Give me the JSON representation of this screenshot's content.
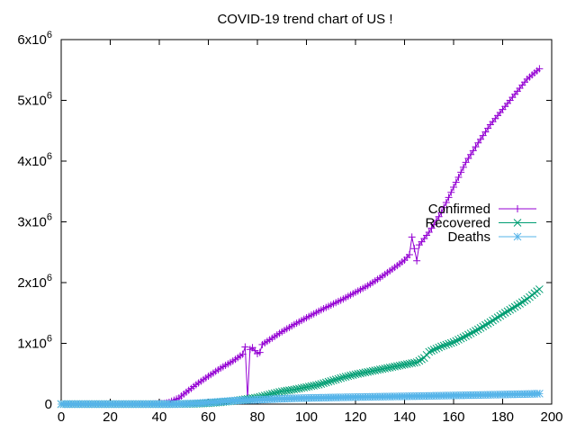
{
  "chart_data": {
    "type": "line",
    "title": "COVID-19 trend chart of US !",
    "xlabel": "",
    "ylabel": "",
    "xlim": [
      0,
      200
    ],
    "ylim": [
      0,
      6000000
    ],
    "x_ticks": [
      0,
      20,
      40,
      60,
      80,
      100,
      120,
      140,
      160,
      180,
      200
    ],
    "y_ticks": [
      {
        "value": 0,
        "mantissa": "0",
        "exponent": ""
      },
      {
        "value": 1000000,
        "mantissa": "1x10",
        "exponent": "6"
      },
      {
        "value": 2000000,
        "mantissa": "2x10",
        "exponent": "6"
      },
      {
        "value": 3000000,
        "mantissa": "3x10",
        "exponent": "6"
      },
      {
        "value": 4000000,
        "mantissa": "4x10",
        "exponent": "6"
      },
      {
        "value": 5000000,
        "mantissa": "5x10",
        "exponent": "6"
      },
      {
        "value": 6000000,
        "mantissa": "6x10",
        "exponent": "6"
      }
    ],
    "grid": false,
    "legend_position": "right",
    "series": [
      {
        "name": "Confirmed",
        "color": "#9400d3",
        "marker": "plus",
        "points": [
          [
            0,
            1
          ],
          [
            10,
            10
          ],
          [
            20,
            15
          ],
          [
            30,
            40
          ],
          [
            35,
            100
          ],
          [
            38,
            1000
          ],
          [
            40,
            3000
          ],
          [
            42,
            10000
          ],
          [
            44,
            30000
          ],
          [
            46,
            65000
          ],
          [
            48,
            100000
          ],
          [
            50,
            165000
          ],
          [
            55,
            320000
          ],
          [
            60,
            460000
          ],
          [
            65,
            590000
          ],
          [
            70,
            710000
          ],
          [
            74,
            820000
          ],
          [
            75,
            940000
          ],
          [
            76,
            100000
          ],
          [
            77,
            900000
          ],
          [
            78,
            930000
          ],
          [
            80,
            830000
          ],
          [
            81,
            850000
          ],
          [
            82,
            980000
          ],
          [
            85,
            1060000
          ],
          [
            90,
            1190000
          ],
          [
            95,
            1310000
          ],
          [
            100,
            1420000
          ],
          [
            105,
            1530000
          ],
          [
            110,
            1630000
          ],
          [
            115,
            1730000
          ],
          [
            120,
            1840000
          ],
          [
            125,
            1950000
          ],
          [
            130,
            2080000
          ],
          [
            135,
            2220000
          ],
          [
            140,
            2370000
          ],
          [
            142,
            2460000
          ],
          [
            143,
            2750000
          ],
          [
            144,
            2560000
          ],
          [
            145,
            2360000
          ],
          [
            146,
            2620000
          ],
          [
            150,
            2830000
          ],
          [
            155,
            3150000
          ],
          [
            160,
            3570000
          ],
          [
            165,
            3980000
          ],
          [
            170,
            4300000
          ],
          [
            175,
            4600000
          ],
          [
            180,
            4850000
          ],
          [
            185,
            5100000
          ],
          [
            190,
            5350000
          ],
          [
            195,
            5520000
          ]
        ]
      },
      {
        "name": "Recovered",
        "color": "#009e73",
        "marker": "cross",
        "points": [
          [
            0,
            0
          ],
          [
            20,
            0
          ],
          [
            40,
            0
          ],
          [
            50,
            1000
          ],
          [
            55,
            5000
          ],
          [
            60,
            15000
          ],
          [
            65,
            30000
          ],
          [
            70,
            50000
          ],
          [
            75,
            80000
          ],
          [
            80,
            110000
          ],
          [
            85,
            160000
          ],
          [
            90,
            210000
          ],
          [
            95,
            240000
          ],
          [
            100,
            280000
          ],
          [
            105,
            320000
          ],
          [
            110,
            380000
          ],
          [
            115,
            440000
          ],
          [
            120,
            490000
          ],
          [
            125,
            530000
          ],
          [
            130,
            570000
          ],
          [
            135,
            610000
          ],
          [
            140,
            650000
          ],
          [
            145,
            690000
          ],
          [
            148,
            760000
          ],
          [
            150,
            860000
          ],
          [
            155,
            950000
          ],
          [
            160,
            1020000
          ],
          [
            165,
            1120000
          ],
          [
            170,
            1230000
          ],
          [
            175,
            1350000
          ],
          [
            180,
            1480000
          ],
          [
            185,
            1600000
          ],
          [
            190,
            1730000
          ],
          [
            195,
            1890000
          ]
        ]
      },
      {
        "name": "Deaths",
        "color": "#56b4e9",
        "marker": "star",
        "points": [
          [
            0,
            0
          ],
          [
            20,
            0
          ],
          [
            40,
            0
          ],
          [
            45,
            500
          ],
          [
            50,
            5000
          ],
          [
            55,
            12000
          ],
          [
            60,
            25000
          ],
          [
            65,
            40000
          ],
          [
            70,
            55000
          ],
          [
            75,
            65000
          ],
          [
            80,
            70000
          ],
          [
            85,
            80000
          ],
          [
            90,
            88000
          ],
          [
            95,
            95000
          ],
          [
            100,
            100000
          ],
          [
            110,
            108000
          ],
          [
            120,
            115000
          ],
          [
            130,
            122000
          ],
          [
            140,
            128000
          ],
          [
            145,
            131000
          ],
          [
            150,
            135000
          ],
          [
            160,
            142000
          ],
          [
            170,
            150000
          ],
          [
            180,
            158000
          ],
          [
            190,
            166000
          ],
          [
            195,
            172000
          ]
        ]
      }
    ]
  }
}
